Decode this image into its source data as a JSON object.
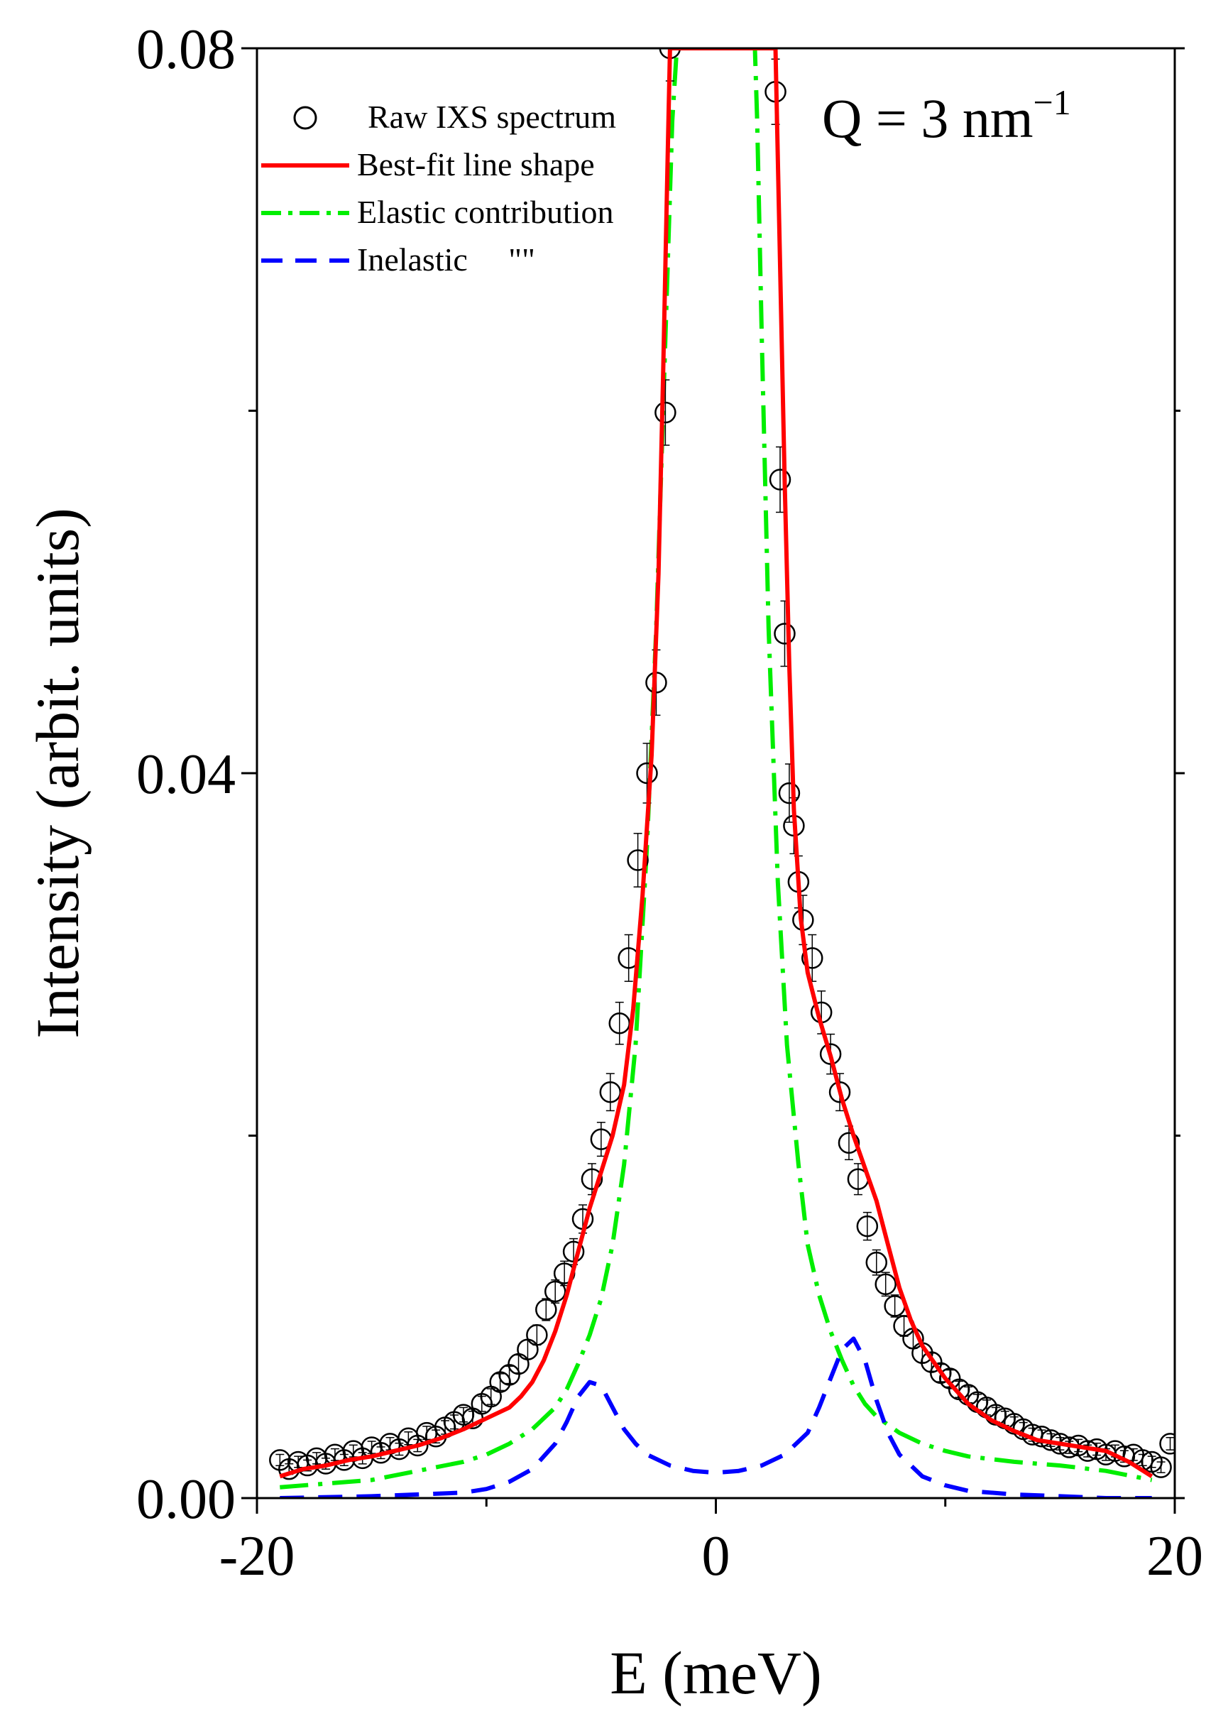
{
  "chart_data": {
    "type": "scatter",
    "title": "",
    "annotation": {
      "text": "Q = 3 nm",
      "superscript": "−1"
    },
    "xlabel": "E (meV)",
    "ylabel": "Intensity (arbit. units)",
    "xlim": [
      -20,
      20
    ],
    "ylim": [
      0,
      0.08
    ],
    "xticks": [
      -20,
      0,
      20
    ],
    "xtick_labels": [
      "-20",
      "0",
      "20"
    ],
    "yticks": [
      0,
      0.04,
      0.08
    ],
    "ytick_labels": [
      "0.00",
      "0.04",
      "0.08"
    ],
    "x_minor_ticks": [
      -10,
      10
    ],
    "y_minor_ticks": [
      0.02,
      0.06
    ],
    "legend_position": "top-left",
    "legend": [
      {
        "label": "Raw IXS spectrum",
        "style": "open-circle",
        "color": "#000000"
      },
      {
        "label": "Best-fit line shape",
        "style": "solid",
        "color": "#ff0000"
      },
      {
        "label": "Elastic contribution",
        "style": "dash-dot",
        "color": "#00ee00"
      },
      {
        "label": "Inelastic     \"\"",
        "style": "dash",
        "color": "#0000ff"
      }
    ],
    "series": [
      {
        "name": "Raw IXS spectrum",
        "kind": "points",
        "color": "#000000",
        "x": [
          -19.0,
          -18.6,
          -18.2,
          -17.8,
          -17.4,
          -17.0,
          -16.6,
          -16.2,
          -15.8,
          -15.4,
          -15.0,
          -14.6,
          -14.2,
          -13.8,
          -13.4,
          -13.0,
          -12.6,
          -12.2,
          -11.8,
          -11.4,
          -11.0,
          -10.6,
          -10.2,
          -9.8,
          -9.4,
          -9.0,
          -8.6,
          -8.2,
          -7.8,
          -7.4,
          -7.0,
          -6.6,
          -6.2,
          -5.8,
          -5.4,
          -5.0,
          -4.6,
          -4.2,
          -3.8,
          -3.4,
          -3.0,
          -2.6,
          -2.2,
          -2.0,
          2.6,
          2.8,
          3.0,
          3.2,
          3.4,
          3.6,
          3.8,
          4.2,
          4.6,
          5.0,
          5.4,
          5.8,
          6.2,
          6.6,
          7.0,
          7.4,
          7.8,
          8.2,
          8.6,
          9.0,
          9.4,
          9.8,
          10.2,
          10.6,
          11.0,
          11.4,
          11.8,
          12.2,
          12.6,
          13.0,
          13.4,
          13.8,
          14.2,
          14.6,
          15.0,
          15.4,
          15.8,
          16.2,
          16.6,
          17.0,
          17.4,
          17.8,
          18.2,
          18.6,
          19.0,
          19.4,
          19.8
        ],
        "y": [
          0.0021,
          0.0016,
          0.002,
          0.0018,
          0.0022,
          0.0019,
          0.0024,
          0.0021,
          0.0026,
          0.0022,
          0.0028,
          0.0025,
          0.003,
          0.0027,
          0.0033,
          0.0029,
          0.0036,
          0.0034,
          0.0039,
          0.0042,
          0.0046,
          0.0044,
          0.0052,
          0.0056,
          0.0064,
          0.0068,
          0.0074,
          0.0082,
          0.009,
          0.0104,
          0.0114,
          0.0124,
          0.0136,
          0.0154,
          0.0176,
          0.0198,
          0.0224,
          0.0262,
          0.0298,
          0.0352,
          0.04,
          0.045,
          0.0599,
          0.08,
          0.0776,
          0.0562,
          0.0477,
          0.0389,
          0.0371,
          0.034,
          0.0319,
          0.0298,
          0.0268,
          0.0245,
          0.0224,
          0.0196,
          0.0176,
          0.015,
          0.013,
          0.0118,
          0.0106,
          0.0095,
          0.0088,
          0.008,
          0.0075,
          0.0069,
          0.0066,
          0.006,
          0.0057,
          0.0053,
          0.005,
          0.0046,
          0.0044,
          0.0041,
          0.0038,
          0.0035,
          0.0034,
          0.0032,
          0.003,
          0.0028,
          0.0029,
          0.0026,
          0.0027,
          0.0024,
          0.0026,
          0.0023,
          0.0024,
          0.0021,
          0.002,
          0.0017,
          0.003
        ]
      },
      {
        "name": "Best-fit line shape",
        "kind": "line",
        "color": "#ff0000",
        "x": [
          -19.0,
          -18.0,
          -17.0,
          -16.0,
          -15.0,
          -14.0,
          -13.0,
          -12.0,
          -11.0,
          -10.0,
          -9.0,
          -8.5,
          -8.0,
          -7.5,
          -7.0,
          -6.5,
          -6.0,
          -5.5,
          -5.0,
          -4.5,
          -4.0,
          -3.6,
          -3.2,
          -2.8,
          -2.5,
          -2.3,
          -2.1,
          -2.0,
          2.6,
          2.8,
          3.0,
          3.2,
          3.4,
          3.7,
          4.0,
          4.5,
          5.0,
          5.5,
          6.0,
          6.5,
          7.0,
          7.5,
          8.0,
          8.5,
          9.0,
          10.0,
          11.0,
          12.0,
          13.0,
          14.0,
          15.0,
          16.0,
          17.0,
          18.0,
          19.0
        ],
        "y": [
          0.0012,
          0.0016,
          0.0018,
          0.0021,
          0.0023,
          0.0026,
          0.0029,
          0.0033,
          0.0038,
          0.0044,
          0.005,
          0.0056,
          0.0064,
          0.0076,
          0.0092,
          0.0112,
          0.0136,
          0.016,
          0.018,
          0.02,
          0.0228,
          0.027,
          0.0332,
          0.041,
          0.051,
          0.062,
          0.074,
          0.08,
          0.08,
          0.068,
          0.056,
          0.046,
          0.038,
          0.032,
          0.029,
          0.0265,
          0.0244,
          0.022,
          0.02,
          0.0182,
          0.0164,
          0.014,
          0.0116,
          0.0098,
          0.0084,
          0.0066,
          0.0052,
          0.0043,
          0.0037,
          0.0032,
          0.003,
          0.0028,
          0.0026,
          0.002,
          0.0012
        ]
      },
      {
        "name": "Elastic contribution",
        "kind": "line",
        "color": "#00ee00",
        "x": [
          -19.0,
          -17.0,
          -15.0,
          -13.0,
          -11.0,
          -10.0,
          -9.0,
          -8.0,
          -7.0,
          -6.5,
          -6.0,
          -5.5,
          -5.0,
          -4.5,
          -4.0,
          -3.5,
          -3.0,
          -2.6,
          -2.2,
          -1.9,
          -1.7,
          -1.6,
          1.7,
          1.8,
          2.0,
          2.3,
          2.7,
          3.1,
          3.6,
          4.0,
          4.5,
          5.0,
          5.5,
          6.0,
          6.5,
          7.0,
          8.0,
          9.0,
          10.0,
          11.0,
          13.0,
          15.0,
          17.0,
          19.0
        ],
        "y": [
          0.0006,
          0.0008,
          0.001,
          0.0015,
          0.002,
          0.0024,
          0.003,
          0.0038,
          0.005,
          0.006,
          0.0074,
          0.009,
          0.011,
          0.014,
          0.0184,
          0.025,
          0.036,
          0.048,
          0.064,
          0.076,
          0.08,
          0.08,
          0.08,
          0.076,
          0.064,
          0.048,
          0.034,
          0.025,
          0.0184,
          0.014,
          0.0112,
          0.0092,
          0.0076,
          0.0062,
          0.0052,
          0.0045,
          0.0036,
          0.003,
          0.0026,
          0.0023,
          0.002,
          0.0018,
          0.0015,
          0.001
        ]
      },
      {
        "name": "Inelastic",
        "kind": "line",
        "color": "#0000ff",
        "x": [
          -19.0,
          -15.0,
          -13.0,
          -11.0,
          -10.0,
          -9.0,
          -8.0,
          -7.0,
          -6.5,
          -6.0,
          -5.5,
          -5.0,
          -4.5,
          -4.0,
          -3.5,
          -3.0,
          -2.0,
          -1.0,
          0.0,
          1.0,
          2.0,
          3.0,
          4.0,
          4.5,
          5.0,
          5.5,
          6.0,
          6.5,
          7.0,
          7.5,
          8.0,
          9.0,
          10.0,
          11.0,
          13.0,
          15.0,
          17.0,
          19.0
        ],
        "y": [
          0.0,
          0.0001,
          0.0002,
          0.0003,
          0.0005,
          0.0009,
          0.0016,
          0.003,
          0.0042,
          0.0056,
          0.0064,
          0.0062,
          0.005,
          0.0038,
          0.003,
          0.0024,
          0.0018,
          0.0015,
          0.0014,
          0.0015,
          0.0018,
          0.0024,
          0.0036,
          0.005,
          0.0066,
          0.0082,
          0.0088,
          0.0076,
          0.0054,
          0.0036,
          0.0024,
          0.0012,
          0.0007,
          0.0004,
          0.0002,
          0.0001,
          0.0,
          0.0
        ]
      }
    ]
  }
}
